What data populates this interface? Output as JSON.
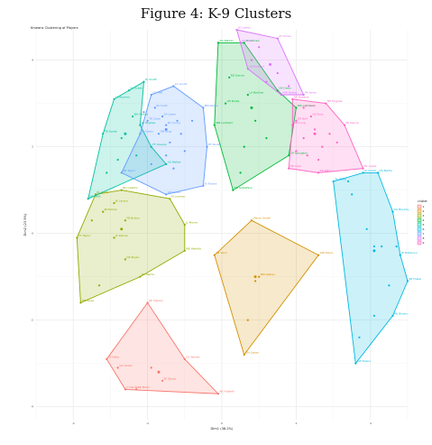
{
  "figure": {
    "title": "Figure 4: K-9 Clusters"
  },
  "chart_data": {
    "type": "scatter",
    "title": "Kmeans Clustering of Players",
    "xlabel": "Dim1 (38.2%)",
    "ylabel": "Dim2 (23.5%)",
    "legend": {
      "title": "cluster",
      "placement": "right",
      "entries": [
        "1",
        "2",
        "3",
        "4",
        "5",
        "6",
        "7",
        "8",
        "9"
      ]
    },
    "grid": true,
    "xlim": [
      -5,
      5
    ],
    "ylim": [
      -4.3,
      4.7
    ],
    "x_ticks": [
      "-4",
      "-2",
      "0",
      "2",
      "4"
    ],
    "y_ticks": [
      "-4",
      "-2",
      "0",
      "2",
      "4"
    ],
    "clusters": [
      {
        "id": "1",
        "color": "#F8766D",
        "hull": [
          [
            -2.0,
            -1.6
          ],
          [
            -3.1,
            -2.9
          ],
          [
            -2.6,
            -3.6
          ],
          [
            -0.1,
            -3.7
          ],
          [
            -1.0,
            -2.9
          ]
        ],
        "points": [
          [
            -2.0,
            -1.6
          ],
          [
            -3.1,
            -2.9
          ],
          [
            -2.6,
            -3.6
          ],
          [
            -0.1,
            -3.7
          ],
          [
            -1.0,
            -2.9
          ],
          [
            -2.8,
            -3.1
          ],
          [
            -2.3,
            -3.6
          ],
          [
            -1.6,
            -3.4
          ],
          [
            -1.9,
            -3.1
          ]
        ],
        "centroid": [
          -1.7,
          -3.2
        ],
        "labels": [
          "GF Hakam",
          "FS Heitz",
          "C Hardin",
          "AB Hubbell",
          "Cd Wainer",
          "OA Voster",
          "BK Miller",
          "RC Bauer"
        ]
      },
      {
        "id": "2",
        "color": "#D39200",
        "hull": [
          [
            0.8,
            0.3
          ],
          [
            -0.2,
            -0.5
          ],
          [
            0.6,
            -2.8
          ],
          [
            2.6,
            -0.5
          ]
        ],
        "points": [
          [
            0.8,
            0.3
          ],
          [
            -0.2,
            -0.5
          ],
          [
            0.6,
            -2.8
          ],
          [
            2.6,
            -0.5
          ],
          [
            1.0,
            -1.0
          ],
          [
            0.7,
            -2.0
          ],
          [
            0.9,
            -1.1
          ]
        ],
        "centroid": [
          0.9,
          -1.0
        ],
        "labels": [
          "Hanon Smith",
          "AB Vann",
          "GH Lopez",
          "GW Kloos",
          "MM Wallen"
        ]
      },
      {
        "id": "3",
        "color": "#93AA00",
        "hull": [
          [
            -3.4,
            0.9
          ],
          [
            -2.7,
            1.0
          ],
          [
            -1.4,
            0.8
          ],
          [
            -1.0,
            0.2
          ],
          [
            -1.0,
            -0.4
          ],
          [
            -2.2,
            -1.0
          ],
          [
            -3.8,
            -1.6
          ],
          [
            -3.9,
            -0.1
          ]
        ],
        "points": [
          [
            -3.4,
            0.9
          ],
          [
            -2.7,
            1.0
          ],
          [
            -1.4,
            0.8
          ],
          [
            -1.0,
            0.2
          ],
          [
            -1.0,
            -0.4
          ],
          [
            -2.2,
            -1.0
          ],
          [
            -3.8,
            -1.6
          ],
          [
            -3.9,
            -0.1
          ],
          [
            -2.9,
            0.7
          ],
          [
            -3.2,
            0.5
          ],
          [
            -2.6,
            0.3
          ],
          [
            -2.9,
            -0.1
          ],
          [
            -2.6,
            -0.6
          ],
          [
            -3.3,
            -1.2
          ],
          [
            -3.5,
            0.3
          ]
        ],
        "centroid": [
          -2.7,
          0.1
        ],
        "labels": [
          "BL Smith",
          "BG Castillo",
          "KI Lorenzo",
          "JL Moore",
          "ME Weddle",
          "RC Martin",
          "HB Perez",
          "TT Taylor",
          "JK Larson",
          "JB Palmer",
          "FB Bolton",
          "JT Ramos",
          "DK Bryan"
        ]
      },
      {
        "id": "4",
        "color": "#00BA38",
        "hull": [
          [
            -0.1,
            4.4
          ],
          [
            0.6,
            4.4
          ],
          [
            1.5,
            3.3
          ],
          [
            2.0,
            2.9
          ],
          [
            1.8,
            1.8
          ],
          [
            0.3,
            1.0
          ],
          [
            -0.2,
            2.5
          ]
        ],
        "points": [
          [
            -0.1,
            4.4
          ],
          [
            0.6,
            4.4
          ],
          [
            1.5,
            3.3
          ],
          [
            2.0,
            2.9
          ],
          [
            1.8,
            1.8
          ],
          [
            0.3,
            1.0
          ],
          [
            -0.2,
            2.5
          ],
          [
            0.2,
            3.6
          ],
          [
            0.7,
            3.2
          ],
          [
            0.1,
            3.0
          ],
          [
            0.9,
            2.6
          ],
          [
            1.2,
            2.2
          ],
          [
            0.6,
            2.0
          ],
          [
            0.5,
            1.4
          ]
        ],
        "centroid": [
          0.8,
          2.9
        ],
        "labels": [
          "AG Walker",
          "AT Ahmed",
          "CB Davis",
          "MR Cornwell",
          "GP Spurgeon",
          "TB Gustafson",
          "WB Lambert",
          "RO Garcia",
          "LA Belcher",
          "OP Burke"
        ]
      },
      {
        "id": "5",
        "color": "#00C19F",
        "hull": [
          [
            -2.1,
            3.5
          ],
          [
            -2.2,
            2.5
          ],
          [
            -1.9,
            2.0
          ],
          [
            -1.5,
            1.6
          ],
          [
            -3.6,
            0.8
          ],
          [
            -3.2,
            2.3
          ],
          [
            -2.9,
            3.1
          ]
        ],
        "points": [
          [
            -2.1,
            3.5
          ],
          [
            -2.2,
            2.5
          ],
          [
            -1.9,
            2.0
          ],
          [
            -1.5,
            1.6
          ],
          [
            -3.6,
            0.8
          ],
          [
            -3.2,
            2.3
          ],
          [
            -2.9,
            3.1
          ],
          [
            -2.5,
            3.3
          ],
          [
            -2.4,
            2.7
          ],
          [
            -2.7,
            2.2
          ],
          [
            -2.8,
            1.7
          ],
          [
            -3.1,
            1.4
          ],
          [
            -2.3,
            1.8
          ]
        ],
        "centroid": [
          -2.6,
          2.3
        ],
        "labels": [
          "HJ Smith",
          "JR Hughes",
          "FF Alvarez",
          "AS Walker",
          "OS Walk",
          "TB Sweet",
          "LS Romero",
          "KL Green",
          "BH Adams"
        ]
      },
      {
        "id": "6",
        "color": "#00B9E3",
        "hull": [
          [
            3.8,
            1.4
          ],
          [
            4.2,
            1.4
          ],
          [
            4.6,
            0.5
          ],
          [
            4.8,
            -0.5
          ],
          [
            5.0,
            -1.1
          ],
          [
            4.6,
            -1.9
          ],
          [
            3.6,
            -3.0
          ],
          [
            3.0,
            1.2
          ]
        ],
        "points": [
          [
            3.8,
            1.4
          ],
          [
            4.2,
            1.4
          ],
          [
            4.6,
            0.5
          ],
          [
            4.8,
            -0.5
          ],
          [
            5.0,
            -1.1
          ],
          [
            4.6,
            -1.9
          ],
          [
            3.6,
            -3.0
          ],
          [
            3.0,
            1.2
          ],
          [
            3.4,
            1.2
          ],
          [
            3.5,
            0.9
          ],
          [
            3.9,
            0.1
          ],
          [
            4.1,
            -0.3
          ],
          [
            4.3,
            -0.3
          ],
          [
            4.7,
            -0.3
          ],
          [
            4.5,
            -1.2
          ],
          [
            4.1,
            -1.9
          ],
          [
            3.7,
            -2.4
          ]
        ],
        "centroid": [
          4.1,
          -0.4
        ],
        "labels": [
          "JC Carter",
          "DS Martin",
          "KA Murphy",
          "JP Robinson",
          "SP Foster",
          "ML Brown",
          "CW Evans",
          "TA Wood"
        ]
      },
      {
        "id": "7",
        "color": "#619CFF",
        "hull": [
          [
            -1.3,
            3.4
          ],
          [
            -0.5,
            2.9
          ],
          [
            -0.4,
            2.0
          ],
          [
            -0.5,
            1.1
          ],
          [
            -1.5,
            0.9
          ],
          [
            -2.7,
            1.4
          ],
          [
            -2.2,
            2.3
          ],
          [
            -1.9,
            3.2
          ]
        ],
        "points": [
          [
            -1.3,
            3.4
          ],
          [
            -0.5,
            2.9
          ],
          [
            -0.4,
            2.0
          ],
          [
            -0.5,
            1.1
          ],
          [
            -1.5,
            0.9
          ],
          [
            -2.7,
            1.4
          ],
          [
            -2.2,
            2.3
          ],
          [
            -1.9,
            3.2
          ],
          [
            -1.8,
            2.9
          ],
          [
            -1.6,
            2.7
          ],
          [
            -1.5,
            2.5
          ],
          [
            -1.7,
            2.3
          ],
          [
            -2.0,
            2.6
          ],
          [
            -1.2,
            2.6
          ],
          [
            -1.4,
            2.1
          ],
          [
            -1.0,
            1.9
          ],
          [
            -1.9,
            1.6
          ],
          [
            -1.3,
            1.5
          ],
          [
            -2.1,
            2.8
          ],
          [
            -1.1,
            2.3
          ],
          [
            -0.8,
            2.6
          ],
          [
            -1.5,
            1.8
          ]
        ],
        "centroid": [
          -1.5,
          2.4
        ],
        "labels": [
          "LC Gould",
          "BM Wilson",
          "EF Nunez",
          "KI Rivera",
          "GH Wood",
          "AB Taylor",
          "JT Green",
          "CC Hall",
          "PA Scott",
          "SA Lewis",
          "RC Young",
          "DM King",
          "TR Clark"
        ]
      },
      {
        "id": "8",
        "color": "#DB72FB",
        "hull": [
          [
            0.4,
            4.7
          ],
          [
            1.5,
            4.5
          ],
          [
            2.2,
            3.2
          ],
          [
            1.6,
            3.2
          ],
          [
            0.7,
            3.8
          ],
          [
            0.5,
            4.4
          ]
        ],
        "points": [
          [
            0.4,
            4.7
          ],
          [
            1.5,
            4.5
          ],
          [
            2.2,
            3.2
          ],
          [
            1.6,
            3.2
          ],
          [
            0.7,
            3.8
          ],
          [
            0.5,
            4.4
          ],
          [
            1.0,
            4.3
          ],
          [
            0.8,
            4.0
          ],
          [
            1.3,
            3.9
          ],
          [
            1.5,
            3.7
          ],
          [
            1.2,
            3.5
          ],
          [
            1.8,
            3.4
          ]
        ],
        "centroid": [
          1.3,
          3.9
        ],
        "labels": [
          "JG Lasley",
          "AT Torres",
          "PA Jones",
          "MW Bailey",
          "LB Howard",
          "DC Reed"
        ]
      },
      {
        "id": "9",
        "color": "#FF61C3",
        "hull": [
          [
            1.9,
            3.1
          ],
          [
            2.8,
            3.0
          ],
          [
            3.3,
            2.5
          ],
          [
            3.8,
            1.5
          ],
          [
            2.6,
            1.4
          ],
          [
            1.8,
            1.5
          ],
          [
            1.9,
            2.5
          ]
        ],
        "points": [
          [
            1.9,
            3.1
          ],
          [
            2.8,
            3.0
          ],
          [
            3.3,
            2.5
          ],
          [
            3.8,
            1.5
          ],
          [
            2.6,
            1.4
          ],
          [
            1.8,
            1.5
          ],
          [
            1.9,
            2.5
          ],
          [
            2.2,
            2.9
          ],
          [
            2.4,
            2.7
          ],
          [
            2.0,
            2.6
          ],
          [
            2.5,
            2.4
          ],
          [
            2.9,
            2.3
          ],
          [
            2.2,
            2.2
          ],
          [
            2.7,
            2.0
          ],
          [
            3.1,
            2.1
          ],
          [
            2.3,
            1.8
          ],
          [
            2.6,
            1.7
          ],
          [
            2.0,
            1.9
          ]
        ],
        "centroid": [
          2.5,
          2.3
        ],
        "labels": [
          "DS Roberts",
          "MF Hughes",
          "PA Garcia",
          "EL Lopez",
          "KN Ward",
          "TB Cook",
          "RM Long",
          "JW Price",
          "HS Ross",
          "DP Bell"
        ]
      }
    ]
  }
}
